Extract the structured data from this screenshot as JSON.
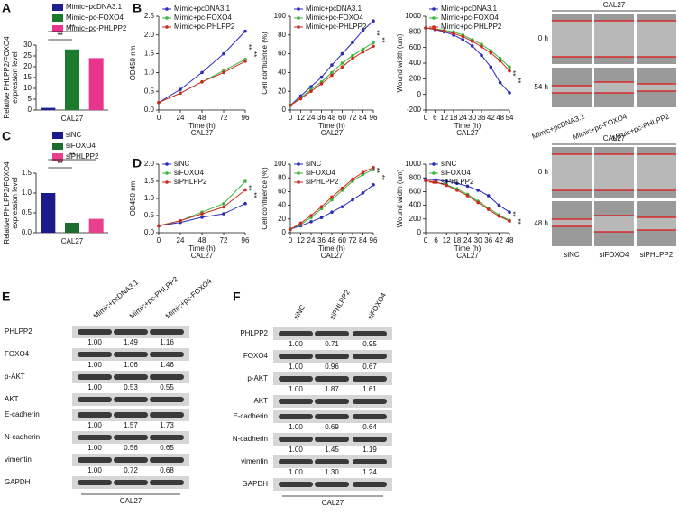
{
  "panel_labels": [
    "A",
    "B",
    "C",
    "D",
    "E",
    "F"
  ],
  "chart_data": [
    {
      "type": "bar",
      "ylabel": [
        "Relative PHLPP2/FOXO4",
        "expression level"
      ],
      "xlabel": "CAL27",
      "categories": [
        "Mimic+pcDNA3.1",
        "Mimic+pc-FOXO4",
        "Mimic+pc-PHLPP2"
      ],
      "values": [
        1,
        28,
        24
      ],
      "colors": [
        "#1f1f8f",
        "#1c7a2c",
        "#e8348c"
      ],
      "ylim": [
        0,
        30
      ],
      "yticks": [
        0,
        5,
        10,
        15,
        20,
        25,
        30
      ],
      "annotations": [
        "**",
        "**"
      ]
    },
    {
      "type": "line",
      "ylabel": "OD450 nm",
      "xlabel": "Time (h)",
      "subtitle": "CAL27",
      "x": [
        0,
        24,
        48,
        72,
        96
      ],
      "xlim": [
        0,
        96
      ],
      "xticks": [
        0,
        24,
        48,
        72,
        96
      ],
      "ylim": [
        0,
        2.5
      ],
      "yticks": [
        {
          "value": 0,
          "label": "0.0"
        },
        {
          "value": 0.5,
          "label": "0.5"
        },
        {
          "value": 1,
          "label": "1.0"
        },
        {
          "value": 1.5,
          "label": "1.5"
        },
        {
          "value": 2,
          "label": "2.0"
        },
        {
          "value": 2.5,
          "label": "2.5"
        }
      ],
      "series": [
        {
          "name": "Mimic+pcDNA3.1",
          "color": "#2b2bb8",
          "values": [
            0.2,
            0.55,
            1.0,
            1.5,
            2.1
          ]
        },
        {
          "name": "Mimic+pc-FOXO4",
          "color": "#3cb53c",
          "values": [
            0.2,
            0.45,
            0.75,
            1.05,
            1.35
          ]
        },
        {
          "name": "Mimic+pc-PHLPP2",
          "color": "#cc2a1e",
          "values": [
            0.2,
            0.45,
            0.75,
            1.0,
            1.3
          ]
        }
      ],
      "annotations": [
        "**",
        "**"
      ]
    },
    {
      "type": "line",
      "ylabel": "Cell confluence (%)",
      "xlabel": "Time (h)",
      "subtitle": "CAL27",
      "x": [
        0,
        12,
        24,
        36,
        48,
        60,
        72,
        84,
        96
      ],
      "xlim": [
        0,
        96
      ],
      "xticks": [
        0,
        12,
        24,
        36,
        48,
        60,
        72,
        84,
        96
      ],
      "ylim": [
        0,
        100
      ],
      "yticks": [
        0,
        20,
        40,
        60,
        80,
        100
      ],
      "series": [
        {
          "name": "Mimic+pcDNA3.1",
          "color": "#2b2bb8",
          "values": [
            5,
            15,
            25,
            35,
            48,
            60,
            72,
            85,
            95
          ]
        },
        {
          "name": "Mimic+pc-FOXO4",
          "color": "#3cb53c",
          "values": [
            5,
            13,
            22,
            30,
            40,
            50,
            58,
            65,
            72
          ]
        },
        {
          "name": "Mimic+pc-PHLPP2",
          "color": "#cc2a1e",
          "values": [
            5,
            12,
            20,
            28,
            37,
            46,
            55,
            62,
            68
          ]
        }
      ],
      "annotations": [
        "**",
        "**"
      ]
    },
    {
      "type": "line",
      "ylabel": "Wound width (um)",
      "xlabel": "Time (h)",
      "subtitle": "CAL27",
      "x": [
        0,
        6,
        12,
        18,
        24,
        30,
        36,
        42,
        48,
        54
      ],
      "xlim": [
        0,
        54
      ],
      "xticks": [
        0,
        6,
        12,
        18,
        24,
        30,
        36,
        42,
        48,
        54
      ],
      "ylim": [
        -200,
        1000
      ],
      "yticks": [
        -200,
        0,
        200,
        400,
        600,
        800,
        1000
      ],
      "series": [
        {
          "name": "Mimic+pcDNA3.1",
          "color": "#2b2bb8",
          "values": [
            850,
            830,
            800,
            760,
            700,
            620,
            500,
            350,
            150,
            20
          ]
        },
        {
          "name": "Mimic+pc-FOXO4",
          "color": "#3cb53c",
          "values": [
            850,
            840,
            820,
            800,
            760,
            700,
            640,
            560,
            460,
            350
          ]
        },
        {
          "name": "Mimic+pc-PHLPP2",
          "color": "#cc2a1e",
          "values": [
            850,
            835,
            810,
            780,
            740,
            680,
            610,
            530,
            430,
            300
          ]
        }
      ],
      "annotations": [
        "**",
        "**"
      ]
    },
    {
      "type": "bar",
      "ylabel": [
        "Relative PHLPP2/FOXO4",
        "expression level"
      ],
      "xlabel": "CAL27",
      "categories": [
        "siNC",
        "siFOXO4",
        "siPHLPP2"
      ],
      "values": [
        1.0,
        0.25,
        0.35
      ],
      "colors": [
        "#1a1a8c",
        "#1e6b2e",
        "#e8408c"
      ],
      "ylim": [
        0,
        1.5
      ],
      "yticks": [
        {
          "value": 0,
          "label": "0.0"
        },
        {
          "value": 0.5,
          "label": "0.5"
        },
        {
          "value": 1,
          "label": "1.0"
        },
        {
          "value": 1.5,
          "label": "1.5"
        }
      ],
      "annotations": [
        "**",
        "**"
      ]
    },
    {
      "type": "line",
      "ylabel": "OD450 nm",
      "xlabel": "Time (h)",
      "subtitle": "CAL27",
      "x": [
        0,
        24,
        48,
        72,
        96
      ],
      "xlim": [
        0,
        96
      ],
      "xticks": [
        0,
        24,
        48,
        72,
        96
      ],
      "ylim": [
        0,
        2
      ],
      "yticks": [
        {
          "value": 0,
          "label": "0.0"
        },
        {
          "value": 0.5,
          "label": "0.5"
        },
        {
          "value": 1,
          "label": "1.0"
        },
        {
          "value": 1.5,
          "label": "1.5"
        },
        {
          "value": 2,
          "label": "2.0"
        }
      ],
      "series": [
        {
          "name": "siNC",
          "color": "#2b2bb8",
          "values": [
            0.2,
            0.3,
            0.45,
            0.55,
            0.85
          ]
        },
        {
          "name": "siFOXO4",
          "color": "#3cb53c",
          "values": [
            0.2,
            0.35,
            0.6,
            0.85,
            1.5
          ]
        },
        {
          "name": "siPHLPP2",
          "color": "#cc2a1e",
          "values": [
            0.2,
            0.35,
            0.55,
            0.75,
            1.25
          ]
        }
      ],
      "annotations": [
        "**",
        "**"
      ]
    },
    {
      "type": "line",
      "ylabel": "Cell confluence (%)",
      "xlabel": "Time (h)",
      "subtitle": "CAL27",
      "x": [
        0,
        12,
        24,
        36,
        48,
        60,
        72,
        84,
        96
      ],
      "xlim": [
        0,
        96
      ],
      "xticks": [
        0,
        12,
        24,
        36,
        48,
        60,
        72,
        84,
        96
      ],
      "ylim": [
        0,
        100
      ],
      "yticks": [
        0,
        20,
        40,
        60,
        80,
        100
      ],
      "series": [
        {
          "name": "siNC",
          "color": "#2b2bb8",
          "values": [
            5,
            10,
            16,
            22,
            30,
            38,
            48,
            58,
            70
          ]
        },
        {
          "name": "siFOXO4",
          "color": "#3cb53c",
          "values": [
            5,
            12,
            22,
            35,
            48,
            62,
            75,
            85,
            92
          ]
        },
        {
          "name": "siPHLPP2",
          "color": "#cc2a1e",
          "values": [
            5,
            14,
            25,
            38,
            52,
            65,
            78,
            88,
            95
          ]
        }
      ],
      "annotations": [
        "**",
        "**"
      ]
    },
    {
      "type": "line",
      "ylabel": "Wound width (um)",
      "xlabel": "Time (h)",
      "subtitle": "CAL27",
      "x": [
        0,
        6,
        12,
        18,
        24,
        30,
        36,
        42,
        48
      ],
      "xlim": [
        0,
        48
      ],
      "xticks": [
        0,
        6,
        12,
        18,
        24,
        30,
        36,
        42,
        48
      ],
      "ylim": [
        0,
        1000
      ],
      "yticks": [
        0,
        200,
        400,
        600,
        800,
        1000
      ],
      "series": [
        {
          "name": "siNC",
          "color": "#2b2bb8",
          "values": [
            780,
            770,
            750,
            720,
            680,
            620,
            540,
            400,
            300
          ]
        },
        {
          "name": "siFOXO4",
          "color": "#3cb53c",
          "values": [
            760,
            740,
            700,
            640,
            560,
            460,
            360,
            260,
            180
          ]
        },
        {
          "name": "siPHLPP2",
          "color": "#cc2a1e",
          "values": [
            760,
            735,
            690,
            620,
            540,
            440,
            340,
            240,
            170
          ]
        }
      ],
      "annotations": [
        "**",
        "**"
      ]
    }
  ],
  "scratch": [
    {
      "title": "CAL27",
      "rows": [
        "0 h",
        "54 h"
      ],
      "columns": [
        "Mimic+pcDNA3.1",
        "Mimic+pc-FOXO4",
        "Mimic+pc-PHLPP2"
      ]
    },
    {
      "title": "CAL27",
      "rows": [
        "0 h",
        "48 h"
      ],
      "columns": [
        "siNC",
        "siFOXO4",
        "siPHLPP2"
      ]
    }
  ],
  "blots": [
    {
      "columns": [
        "Mimic+pcDNA3.1",
        "Mimic+pc-PHLPP2",
        "Mimic+pc-FOXO4"
      ],
      "rows": [
        {
          "name": "PHLPP2",
          "values": [
            "1.00",
            "1.49",
            "1.16"
          ]
        },
        {
          "name": "FOXO4",
          "values": [
            "1.00",
            "1.06",
            "1.46"
          ]
        },
        {
          "name": "p-AKT",
          "values": [
            "1.00",
            "0.53",
            "0.55"
          ]
        },
        {
          "name": "AKT"
        },
        {
          "name": "E-cadherin",
          "values": [
            "1.00",
            "1.57",
            "1.73"
          ]
        },
        {
          "name": "N-cadherin",
          "values": [
            "1.00",
            "0.56",
            "0.65"
          ]
        },
        {
          "name": "vimentin",
          "values": [
            "1.00",
            "0.72",
            "0.68"
          ]
        },
        {
          "name": "GAPDH"
        }
      ],
      "footer": "CAL27"
    },
    {
      "columns": [
        "siNC",
        "siPHLPP2",
        "siFOXO4"
      ],
      "rows": [
        {
          "name": "PHLPP2",
          "values": [
            "1.00",
            "0.71",
            "0.95"
          ]
        },
        {
          "name": "FOXO4",
          "values": [
            "1.00",
            "0.96",
            "0.67"
          ]
        },
        {
          "name": "p-AKT",
          "values": [
            "1.00",
            "1.87",
            "1.61"
          ]
        },
        {
          "name": "AKT"
        },
        {
          "name": "E-cadherin",
          "values": [
            "1.00",
            "0.69",
            "0.64"
          ]
        },
        {
          "name": "N-cadherin",
          "values": [
            "1.00",
            "1.45",
            "1.19"
          ]
        },
        {
          "name": "vimentin",
          "values": [
            "1.00",
            "1.30",
            "1.24"
          ]
        },
        {
          "name": "GAPDH"
        }
      ],
      "footer": "CAL27"
    }
  ]
}
